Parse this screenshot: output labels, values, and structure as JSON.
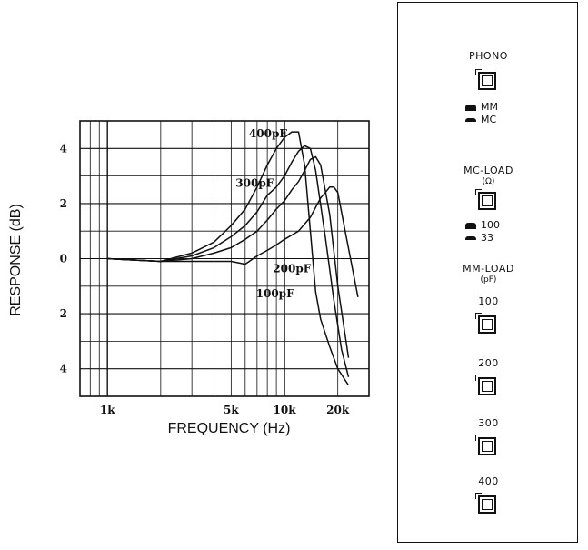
{
  "chart_data": {
    "type": "line",
    "xlabel": "FREQUENCY (Hz)",
    "ylabel": "RESPONSE (dB)",
    "x_scale": "log",
    "xlim": [
      700,
      30000
    ],
    "ylim": [
      -5,
      5
    ],
    "grid": true,
    "x_ticks": [
      {
        "value": 1000,
        "label": "1k"
      },
      {
        "value": 5000,
        "label": "5k"
      },
      {
        "value": 10000,
        "label": "10k"
      },
      {
        "value": 20000,
        "label": "20k"
      }
    ],
    "y_ticks": [
      {
        "value": 4,
        "label": "4"
      },
      {
        "value": 2,
        "label": "2"
      },
      {
        "value": 0,
        "label": "0"
      },
      {
        "value": -2,
        "label": "2"
      },
      {
        "value": -4,
        "label": "4"
      }
    ],
    "series": [
      {
        "name": "400pF",
        "x": [
          1000,
          2000,
          3000,
          4000,
          5000,
          6000,
          7000,
          8000,
          9000,
          10000,
          11000,
          12000,
          13000,
          14000,
          15000,
          16000,
          18000,
          20000,
          23000
        ],
        "y": [
          0,
          -0.1,
          0.2,
          0.6,
          1.2,
          1.8,
          2.6,
          3.4,
          4.0,
          4.4,
          4.6,
          4.6,
          3.4,
          1.0,
          -1.2,
          -2.2,
          -3.2,
          -4.0,
          -4.6
        ]
      },
      {
        "name": "300pF",
        "x": [
          1000,
          2000,
          3000,
          4000,
          5000,
          6000,
          7000,
          8000,
          9000,
          10000,
          11000,
          12000,
          13000,
          14000,
          15000,
          17000,
          19000,
          21000,
          23000
        ],
        "y": [
          0,
          -0.1,
          0.1,
          0.4,
          0.8,
          1.2,
          1.7,
          2.3,
          2.6,
          3.0,
          3.5,
          3.9,
          4.1,
          4.0,
          3.2,
          0.8,
          -1.5,
          -3.3,
          -4.3
        ]
      },
      {
        "name": "200pF",
        "x": [
          1000,
          2000,
          3000,
          4000,
          5000,
          6000,
          7000,
          8000,
          9000,
          10000,
          11000,
          12000,
          13000,
          14000,
          15000,
          16000,
          18000,
          20000,
          23000
        ],
        "y": [
          0,
          -0.1,
          0,
          0.2,
          0.4,
          0.7,
          1.0,
          1.4,
          1.8,
          2.1,
          2.5,
          2.8,
          3.2,
          3.6,
          3.7,
          3.4,
          1.6,
          -1.0,
          -3.6
        ]
      },
      {
        "name": "100pF",
        "x": [
          1000,
          2000,
          3000,
          4000,
          5000,
          6000,
          7000,
          8000,
          9000,
          10000,
          12000,
          14000,
          16000,
          17000,
          18000,
          19000,
          20000,
          22000,
          26000
        ],
        "y": [
          0,
          -0.1,
          -0.1,
          -0.1,
          -0.1,
          -0.2,
          0.1,
          0.3,
          0.5,
          0.7,
          1.0,
          1.5,
          2.2,
          2.4,
          2.6,
          2.6,
          2.4,
          1.0,
          -1.4
        ]
      }
    ],
    "annotations": [
      {
        "label": "400pF",
        "x": 6300,
        "y": 4.4
      },
      {
        "label": "300pF",
        "x": 5300,
        "y": 2.6
      },
      {
        "label": "200pF",
        "x": 8600,
        "y": -0.5
      },
      {
        "label": "100pF",
        "x": 6900,
        "y": -1.4
      }
    ]
  },
  "panel": {
    "phono": {
      "title": "PHONO",
      "options": [
        "MM",
        "MC"
      ]
    },
    "mc_load": {
      "title": "MC-LOAD",
      "unit": "(Ω)",
      "options": [
        "100",
        "33"
      ]
    },
    "mm_load": {
      "title": "MM-LOAD",
      "unit": "(pF)",
      "buttons": [
        "100",
        "200",
        "300",
        "400"
      ]
    }
  }
}
